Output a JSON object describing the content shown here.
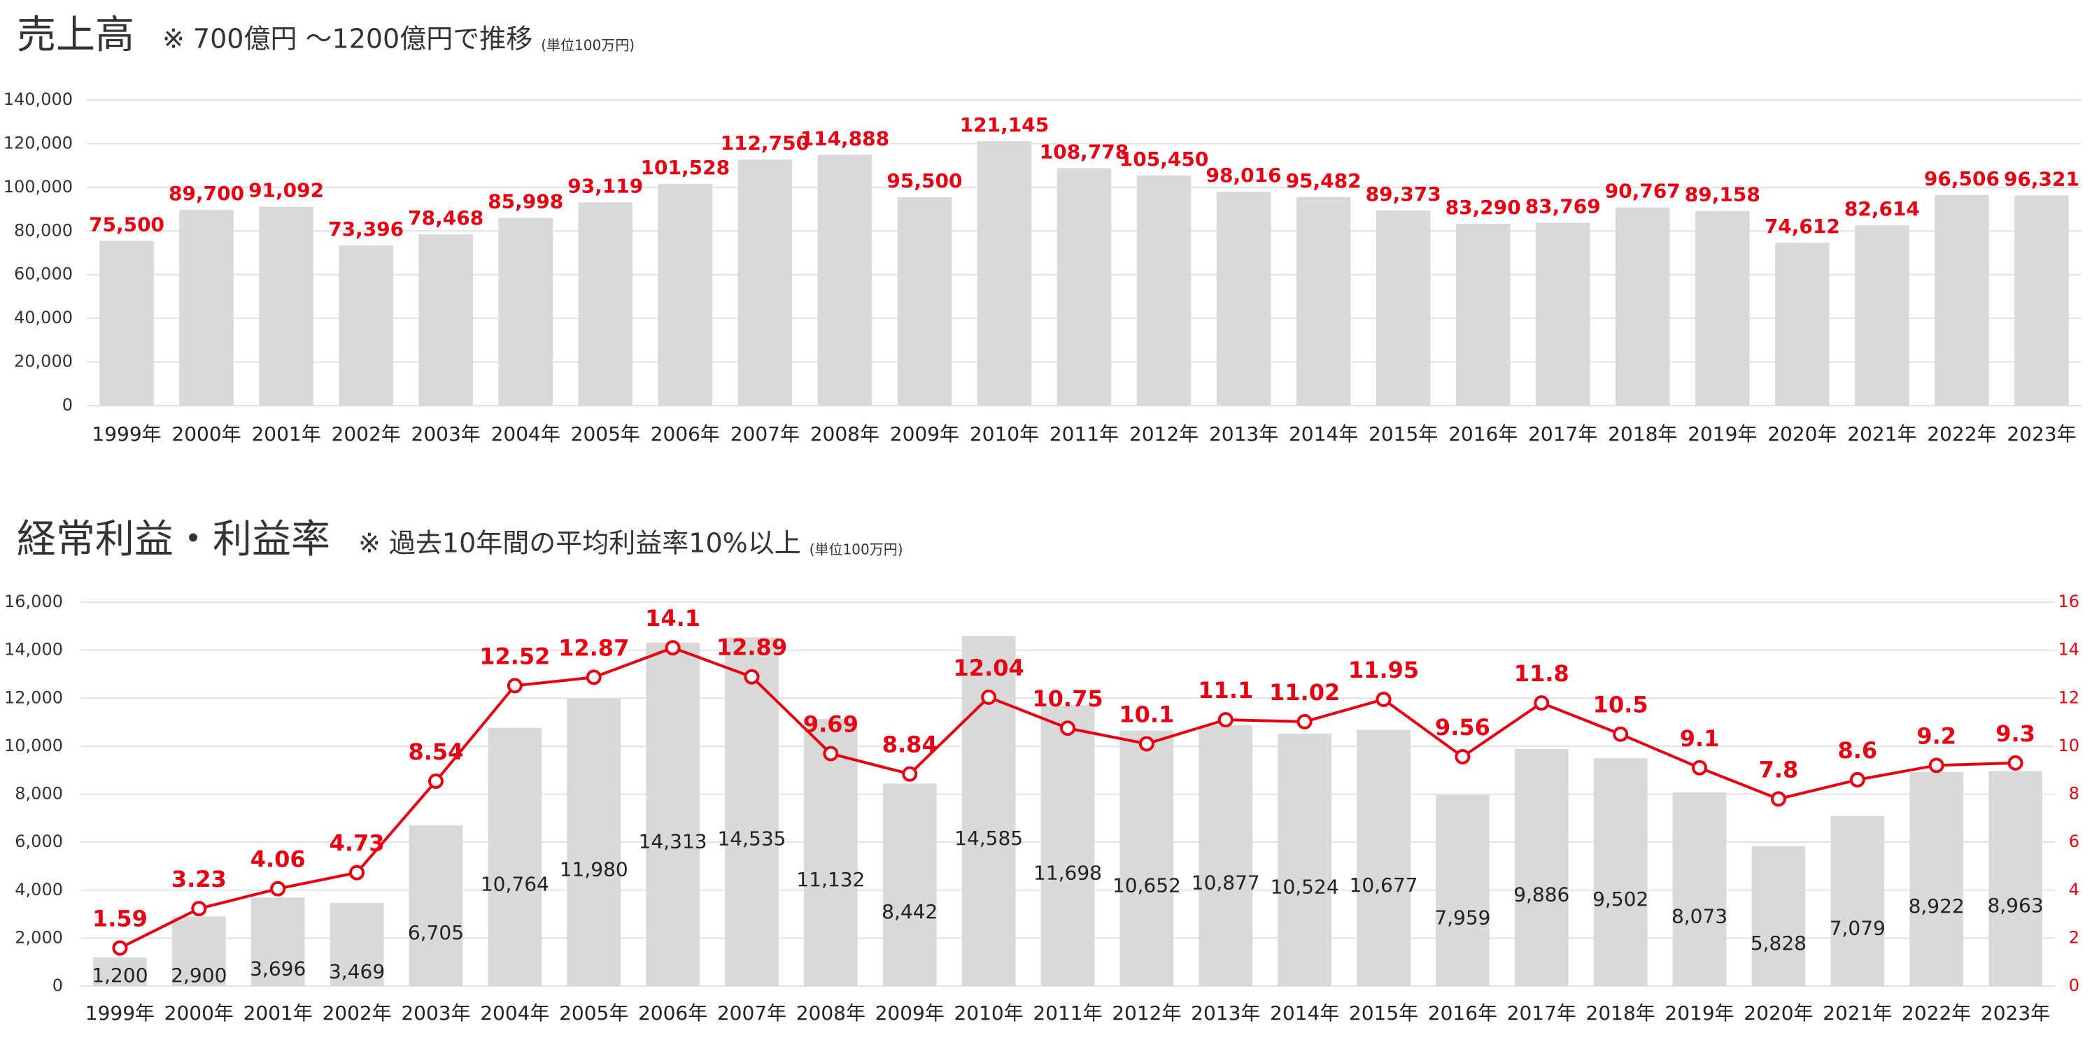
{
  "chart_data": [
    {
      "type": "bar",
      "title": "売上高",
      "subtitle": "※ 700億円 〜1200億円で推移",
      "note": "(単位100万円)",
      "categories": [
        "1999年",
        "2000年",
        "2001年",
        "2002年",
        "2003年",
        "2004年",
        "2005年",
        "2006年",
        "2007年",
        "2008年",
        "2009年",
        "2010年",
        "2011年",
        "2012年",
        "2013年",
        "2014年",
        "2015年",
        "2016年",
        "2017年",
        "2018年",
        "2019年",
        "2020年",
        "2021年",
        "2022年",
        "2023年"
      ],
      "series": [
        {
          "type": "bar",
          "color": "#d9d9d9",
          "label_color": "#e60012",
          "values": [
            75500,
            89700,
            91092,
            73396,
            78468,
            85998,
            93119,
            101528,
            112750,
            114888,
            95500,
            121145,
            108778,
            105450,
            98016,
            95482,
            89373,
            83290,
            83769,
            90767,
            89158,
            74612,
            82614,
            96506,
            96321
          ],
          "value_labels": [
            "75,500",
            "89,700",
            "91,092",
            "73,396",
            "78,468",
            "85,998",
            "93,119",
            "101,528",
            "112,750",
            "114,888",
            "95,500",
            "121,145",
            "108,778",
            "105,450",
            "98,016",
            "95,482",
            "89,373",
            "83,290",
            "83,769",
            "90,767",
            "89,158",
            "74,612",
            "82,614",
            "96,506",
            "96,321"
          ]
        }
      ],
      "ylim": [
        0,
        140000
      ],
      "yticks": [
        0,
        {
          "value": 20000,
          "label": "20,000"
        },
        {
          "value": 40000,
          "label": "40,000"
        },
        {
          "value": 60000,
          "label": "60,000"
        },
        {
          "value": 80000,
          "label": "80,000"
        },
        {
          "value": 100000,
          "label": "100,000"
        },
        {
          "value": 120000,
          "label": "120,000"
        },
        {
          "value": 140000,
          "label": "140,000"
        }
      ],
      "grid": true
    },
    {
      "type": "combo",
      "title": "経常利益・利益率",
      "subtitle": "※ 過去10年間の平均利益率10%以上",
      "note": "(単位100万円)",
      "categories": [
        "1999年",
        "2000年",
        "2001年",
        "2002年",
        "2003年",
        "2004年",
        "2005年",
        "2006年",
        "2007年",
        "2008年",
        "2009年",
        "2010年",
        "2011年",
        "2012年",
        "2013年",
        "2014年",
        "2015年",
        "2016年",
        "2017年",
        "2018年",
        "2019年",
        "2020年",
        "2021年",
        "2022年",
        "2023年"
      ],
      "series": [
        {
          "type": "bar",
          "color": "#d9d9d9",
          "label_color": "#222222",
          "values": [
            1200,
            2900,
            3696,
            3469,
            6705,
            10764,
            11980,
            14313,
            14535,
            11132,
            8442,
            14585,
            11698,
            10652,
            10877,
            10524,
            10677,
            7959,
            9886,
            9502,
            8073,
            5828,
            7079,
            8922,
            8963
          ],
          "value_labels": [
            "1,200",
            "2,900",
            "3,696",
            "3,469",
            "6,705",
            "10,764",
            "11,980",
            "14,313",
            "14,535",
            "11,132",
            "8,442",
            "14,585",
            "11,698",
            "10,652",
            "10,877",
            "10,524",
            "10,677",
            "7,959",
            "9,886",
            "9,502",
            "8,073",
            "5,828",
            "7,079",
            "8,922",
            "8,963"
          ]
        },
        {
          "type": "line",
          "axis": "y2",
          "color": "#e60012",
          "values": [
            1.59,
            3.23,
            4.06,
            4.73,
            8.54,
            12.52,
            12.87,
            14.1,
            12.89,
            9.69,
            8.84,
            12.04,
            10.75,
            10.1,
            11.1,
            11.02,
            11.95,
            9.56,
            11.8,
            10.5,
            9.1,
            7.8,
            8.6,
            9.2,
            9.3
          ]
        }
      ],
      "ylim": [
        0,
        16000
      ],
      "yticks": [
        0,
        {
          "value": 2000,
          "label": "2,000"
        },
        {
          "value": 4000,
          "label": "4,000"
        },
        {
          "value": 6000,
          "label": "6,000"
        },
        {
          "value": 8000,
          "label": "8,000"
        },
        {
          "value": 10000,
          "label": "10,000"
        },
        {
          "value": 12000,
          "label": "12,000"
        },
        {
          "value": 14000,
          "label": "14,000"
        },
        {
          "value": 16000,
          "label": "16,000"
        }
      ],
      "y2lim": [
        0,
        16
      ],
      "y2ticks": [
        0,
        2,
        4,
        6,
        8,
        10,
        12,
        14,
        16
      ],
      "grid": true
    }
  ]
}
